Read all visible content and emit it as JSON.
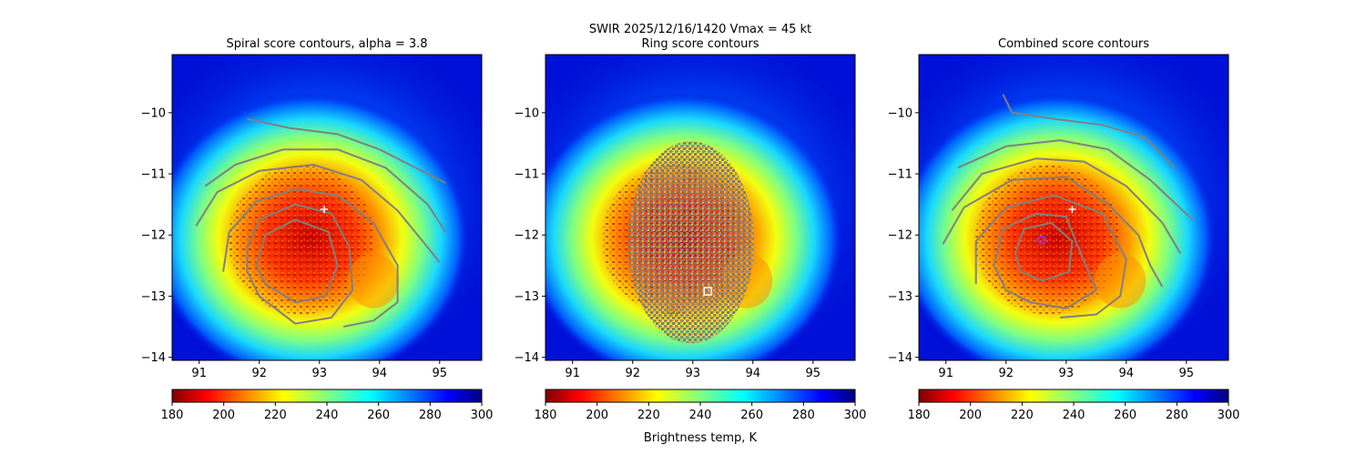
{
  "suptitle_line1": "SWIR  2025/12/16/1420    Vmax = 45 kt",
  "colorbar_label": "Brightness temp, K",
  "colors": {
    "contour": "#808080",
    "mask": "#808080",
    "marker_center": "#ffffff",
    "marker_combined": "#9b30d9"
  },
  "chart_data": [
    {
      "type": "heatmap",
      "title": "Spiral score contours, alpha =  3.8",
      "x_ticks": [
        "91",
        "92",
        "93",
        "94",
        "95"
      ],
      "y_ticks": [
        "-10",
        "-11",
        "-12",
        "-13",
        "-14"
      ],
      "xlim": [
        90.55,
        95.7
      ],
      "ylim": [
        -14.05,
        -9.05
      ],
      "colormap": "jet_r",
      "colorbar": {
        "range": [
          180,
          300
        ],
        "ticks": [
          "180",
          "200",
          "220",
          "240",
          "260",
          "280",
          "300"
        ]
      },
      "markers": [
        {
          "shape": "plus",
          "x": 93.08,
          "y": -11.58
        }
      ],
      "contours": [
        [
          [
            91.8,
            -10.1
          ],
          [
            92.5,
            -10.25
          ],
          [
            93.3,
            -10.35
          ],
          [
            94.0,
            -10.6
          ],
          [
            94.6,
            -10.9
          ],
          [
            95.1,
            -11.15
          ]
        ],
        [
          [
            91.1,
            -11.2
          ],
          [
            91.6,
            -10.85
          ],
          [
            92.4,
            -10.6
          ],
          [
            93.3,
            -10.6
          ],
          [
            94.1,
            -10.9
          ],
          [
            94.8,
            -11.5
          ],
          [
            95.1,
            -11.95
          ]
        ],
        [
          [
            90.95,
            -11.85
          ],
          [
            91.3,
            -11.3
          ],
          [
            92.0,
            -10.95
          ],
          [
            92.9,
            -10.85
          ],
          [
            93.7,
            -11.1
          ],
          [
            94.3,
            -11.6
          ],
          [
            94.8,
            -12.2
          ],
          [
            95.0,
            -12.45
          ]
        ],
        [
          [
            91.4,
            -12.6
          ],
          [
            91.5,
            -11.95
          ],
          [
            91.95,
            -11.45
          ],
          [
            92.6,
            -11.25
          ],
          [
            93.3,
            -11.35
          ],
          [
            93.9,
            -11.8
          ],
          [
            94.3,
            -12.5
          ],
          [
            94.3,
            -13.1
          ],
          [
            93.9,
            -13.4
          ],
          [
            93.4,
            -13.5
          ]
        ],
        [
          [
            91.8,
            -12.2
          ],
          [
            92.0,
            -11.75
          ],
          [
            92.6,
            -11.5
          ],
          [
            93.2,
            -11.65
          ],
          [
            93.5,
            -12.2
          ],
          [
            93.55,
            -12.9
          ],
          [
            93.2,
            -13.35
          ],
          [
            92.6,
            -13.45
          ],
          [
            92.0,
            -13.0
          ],
          [
            91.8,
            -12.6
          ],
          [
            91.8,
            -12.2
          ]
        ],
        [
          [
            91.95,
            -12.5
          ],
          [
            92.1,
            -12.0
          ],
          [
            92.6,
            -11.75
          ],
          [
            93.15,
            -11.95
          ],
          [
            93.3,
            -12.5
          ],
          [
            93.1,
            -13.0
          ],
          [
            92.6,
            -13.1
          ],
          [
            92.1,
            -12.8
          ],
          [
            91.95,
            -12.5
          ]
        ]
      ]
    },
    {
      "type": "heatmap",
      "title": "Ring score contours",
      "x_ticks": [
        "91",
        "92",
        "93",
        "94",
        "95"
      ],
      "y_ticks": [
        "-10",
        "-11",
        "-12",
        "-13",
        "-14"
      ],
      "xlim": [
        90.55,
        95.7
      ],
      "ylim": [
        -14.05,
        -9.05
      ],
      "colormap": "jet_r",
      "colorbar": {
        "range": [
          180,
          300
        ],
        "ticks": [
          "180",
          "200",
          "220",
          "240",
          "260",
          "280",
          "300"
        ]
      },
      "markers": [
        {
          "shape": "square",
          "x": 93.25,
          "y": -12.92
        }
      ],
      "masked_region": {
        "center": [
          92.97,
          -12.12
        ],
        "half_width": 1.05,
        "half_height": 1.65
      }
    },
    {
      "type": "heatmap",
      "title": "Combined score contours",
      "x_ticks": [
        "91",
        "92",
        "93",
        "94",
        "95"
      ],
      "y_ticks": [
        "-10",
        "-11",
        "-12",
        "-13",
        "-14"
      ],
      "xlim": [
        90.55,
        95.7
      ],
      "ylim": [
        -14.05,
        -9.05
      ],
      "colormap": "jet_r",
      "colorbar": {
        "range": [
          180,
          300
        ],
        "ticks": [
          "180",
          "200",
          "220",
          "240",
          "260",
          "280",
          "300"
        ]
      },
      "markers": [
        {
          "shape": "plus",
          "x": 93.1,
          "y": -11.58
        },
        {
          "shape": "circle",
          "x": 92.6,
          "y": -12.08
        }
      ],
      "contours": [
        [
          [
            91.95,
            -9.7
          ],
          [
            92.1,
            -10.0
          ],
          [
            92.8,
            -10.1
          ],
          [
            93.6,
            -10.2
          ],
          [
            94.3,
            -10.4
          ],
          [
            94.8,
            -10.9
          ]
        ],
        [
          [
            91.2,
            -10.9
          ],
          [
            92.0,
            -10.55
          ],
          [
            92.9,
            -10.45
          ],
          [
            93.7,
            -10.6
          ],
          [
            94.4,
            -11.1
          ],
          [
            95.1,
            -11.75
          ]
        ],
        [
          [
            91.1,
            -11.6
          ],
          [
            91.6,
            -11.0
          ],
          [
            92.5,
            -10.75
          ],
          [
            93.3,
            -10.8
          ],
          [
            94.0,
            -11.2
          ],
          [
            94.6,
            -11.8
          ],
          [
            94.9,
            -12.3
          ]
        ],
        [
          [
            90.95,
            -12.15
          ],
          [
            91.3,
            -11.55
          ],
          [
            92.1,
            -11.1
          ],
          [
            93.0,
            -11.05
          ],
          [
            93.7,
            -11.5
          ],
          [
            94.2,
            -12.0
          ],
          [
            94.4,
            -12.5
          ],
          [
            94.6,
            -12.85
          ]
        ],
        [
          [
            91.5,
            -12.8
          ],
          [
            91.5,
            -12.1
          ],
          [
            92.0,
            -11.55
          ],
          [
            92.8,
            -11.35
          ],
          [
            93.6,
            -11.65
          ],
          [
            94.0,
            -12.4
          ],
          [
            93.9,
            -13.0
          ],
          [
            93.5,
            -13.3
          ],
          [
            92.9,
            -13.35
          ]
        ],
        [
          [
            91.8,
            -12.5
          ],
          [
            91.95,
            -11.9
          ],
          [
            92.5,
            -11.65
          ],
          [
            93.0,
            -11.7
          ],
          [
            93.2,
            -12.2
          ],
          [
            93.5,
            -12.9
          ],
          [
            93.0,
            -13.2
          ],
          [
            92.4,
            -13.1
          ],
          [
            92.0,
            -12.9
          ],
          [
            91.8,
            -12.5
          ]
        ],
        [
          [
            92.15,
            -12.3
          ],
          [
            92.3,
            -11.9
          ],
          [
            92.75,
            -11.8
          ],
          [
            93.1,
            -12.1
          ],
          [
            93.05,
            -12.6
          ],
          [
            92.6,
            -12.75
          ],
          [
            92.25,
            -12.6
          ],
          [
            92.15,
            -12.3
          ]
        ]
      ]
    }
  ]
}
